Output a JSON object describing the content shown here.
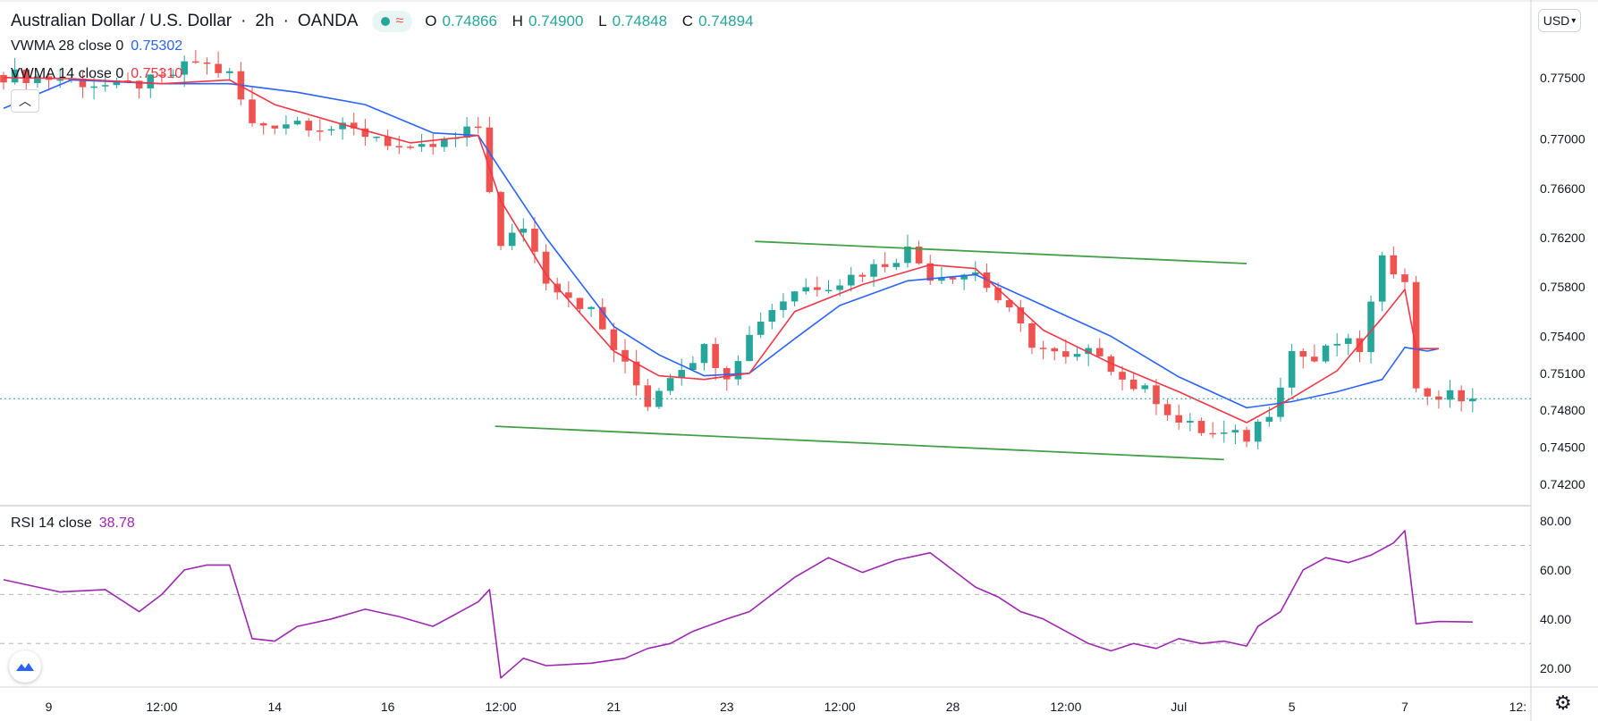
{
  "header": {
    "symbol": "Australian Dollar / U.S. Dollar",
    "interval": "2h",
    "exchange": "OANDA",
    "ohlc": {
      "open_label": "O",
      "open": "0.74866",
      "high_label": "H",
      "high": "0.74900",
      "low_label": "L",
      "low": "0.74848",
      "close_label": "C",
      "close": "0.74894"
    }
  },
  "indicators": {
    "vwma28": {
      "label": "VWMA 28 close 0",
      "value": "0.75302",
      "color": "#2962ff"
    },
    "vwma14": {
      "label": "VWMA 14 close 0",
      "value": "0.75310",
      "color": "#f23645"
    }
  },
  "rsi": {
    "label": "RSI 14 close",
    "value": "38.78",
    "color": "#9c27b0"
  },
  "currency_button": "USD",
  "chart_data": [
    {
      "type": "candlestick",
      "title": "Australian Dollar / U.S. Dollar 2h OANDA",
      "ylim": [
        0.7404,
        0.781
      ],
      "y_ticks": [
        "0.77500",
        "0.77000",
        "0.76600",
        "0.76200",
        "0.75800",
        "0.75400",
        "0.75100",
        "0.74800",
        "0.74500",
        "0.74200"
      ],
      "y_tick_values": [
        0.775,
        0.77,
        0.766,
        0.762,
        0.758,
        0.754,
        0.751,
        0.748,
        0.745,
        0.742
      ],
      "x_ticks": [
        "9",
        "12:00",
        "14",
        "16",
        "12:00",
        "21",
        "23",
        "12:00",
        "28",
        "12:00",
        "Jul",
        "5",
        "7",
        "12:"
      ],
      "x_tick_positions": [
        4,
        14,
        24,
        34,
        44,
        54,
        64,
        74,
        84,
        94,
        104,
        114,
        124,
        134
      ],
      "x_range": [
        0,
        135
      ],
      "last_price": 0.74894,
      "anchors_close": [
        [
          0,
          0.7752
        ],
        [
          5,
          0.7749
        ],
        [
          10,
          0.7742
        ],
        [
          14,
          0.7748
        ],
        [
          17,
          0.7763
        ],
        [
          20,
          0.7752
        ],
        [
          22,
          0.7711
        ],
        [
          26,
          0.7715
        ],
        [
          29,
          0.7709
        ],
        [
          33,
          0.7703
        ],
        [
          36,
          0.7688
        ],
        [
          40,
          0.77
        ],
        [
          42,
          0.771
        ],
        [
          44,
          0.7611
        ],
        [
          46,
          0.763
        ],
        [
          48,
          0.7587
        ],
        [
          52,
          0.756
        ],
        [
          55,
          0.7515
        ],
        [
          57,
          0.7486
        ],
        [
          59,
          0.751
        ],
        [
          62,
          0.753
        ],
        [
          64,
          0.751
        ],
        [
          67,
          0.7555
        ],
        [
          70,
          0.7578
        ],
        [
          74,
          0.7585
        ],
        [
          78,
          0.76
        ],
        [
          80,
          0.761
        ],
        [
          82,
          0.759
        ],
        [
          86,
          0.7592
        ],
        [
          88,
          0.757
        ],
        [
          91,
          0.7535
        ],
        [
          94,
          0.752
        ],
        [
          97,
          0.7528
        ],
        [
          99,
          0.7505
        ],
        [
          102,
          0.749
        ],
        [
          104,
          0.747
        ],
        [
          107,
          0.746
        ],
        [
          110,
          0.7458
        ],
        [
          112,
          0.748
        ],
        [
          114,
          0.7528
        ],
        [
          116,
          0.752
        ],
        [
          118,
          0.7535
        ],
        [
          120,
          0.753
        ],
        [
          122,
          0.76
        ],
        [
          124,
          0.759
        ],
        [
          125,
          0.7495
        ],
        [
          127,
          0.7492
        ],
        [
          130,
          0.7489
        ]
      ],
      "vwma28_points": [
        [
          0,
          0.7725
        ],
        [
          6,
          0.7748
        ],
        [
          14,
          0.7745
        ],
        [
          20,
          0.7745
        ],
        [
          26,
          0.7738
        ],
        [
          32,
          0.7728
        ],
        [
          38,
          0.7705
        ],
        [
          42,
          0.7703
        ],
        [
          44,
          0.7675
        ],
        [
          48,
          0.762
        ],
        [
          54,
          0.7548
        ],
        [
          58,
          0.7525
        ],
        [
          62,
          0.7508
        ],
        [
          66,
          0.751
        ],
        [
          70,
          0.7538
        ],
        [
          74,
          0.7565
        ],
        [
          80,
          0.7585
        ],
        [
          86,
          0.759
        ],
        [
          92,
          0.7565
        ],
        [
          98,
          0.754
        ],
        [
          104,
          0.7507
        ],
        [
          110,
          0.7482
        ],
        [
          114,
          0.7487
        ],
        [
          118,
          0.7495
        ],
        [
          122,
          0.7505
        ],
        [
          124,
          0.7531
        ],
        [
          126,
          0.7528
        ],
        [
          127,
          0.753
        ]
      ],
      "vwma14_points": [
        [
          0,
          0.775
        ],
        [
          6,
          0.7749
        ],
        [
          14,
          0.7745
        ],
        [
          20,
          0.7748
        ],
        [
          24,
          0.7728
        ],
        [
          30,
          0.7712
        ],
        [
          36,
          0.7697
        ],
        [
          42,
          0.7703
        ],
        [
          44,
          0.765
        ],
        [
          48,
          0.759
        ],
        [
          54,
          0.7528
        ],
        [
          58,
          0.7508
        ],
        [
          62,
          0.7505
        ],
        [
          66,
          0.751
        ],
        [
          70,
          0.756
        ],
        [
          76,
          0.7582
        ],
        [
          82,
          0.7598
        ],
        [
          86,
          0.7595
        ],
        [
          92,
          0.7545
        ],
        [
          98,
          0.7518
        ],
        [
          104,
          0.7495
        ],
        [
          110,
          0.747
        ],
        [
          114,
          0.749
        ],
        [
          118,
          0.7512
        ],
        [
          122,
          0.7555
        ],
        [
          124,
          0.7578
        ],
        [
          125,
          0.753
        ],
        [
          127,
          0.753
        ]
      ],
      "channel_upper": [
        [
          66.5,
          0.7617
        ],
        [
          110,
          0.7599
        ]
      ],
      "channel_lower": [
        [
          43.5,
          0.7467
        ],
        [
          108,
          0.744
        ]
      ]
    },
    {
      "type": "line",
      "title": "RSI 14 close",
      "ylim": [
        13,
        84
      ],
      "y_ticks": [
        "80.00",
        "60.00",
        "40.00",
        "20.00"
      ],
      "y_tick_values": [
        80,
        60,
        40,
        20
      ],
      "bands": [
        70,
        50,
        30
      ],
      "rsi_points": [
        [
          0,
          56
        ],
        [
          3,
          53
        ],
        [
          5,
          51
        ],
        [
          9,
          52
        ],
        [
          12,
          43
        ],
        [
          14,
          50
        ],
        [
          16,
          60
        ],
        [
          18,
          62
        ],
        [
          20,
          62
        ],
        [
          22,
          32
        ],
        [
          24,
          31
        ],
        [
          26,
          37
        ],
        [
          29,
          40
        ],
        [
          32,
          44
        ],
        [
          35,
          41
        ],
        [
          38,
          37
        ],
        [
          40,
          42
        ],
        [
          42,
          47
        ],
        [
          43,
          52
        ],
        [
          44,
          16
        ],
        [
          46,
          24
        ],
        [
          48,
          21
        ],
        [
          52,
          22
        ],
        [
          55,
          24
        ],
        [
          57,
          28
        ],
        [
          59,
          30
        ],
        [
          61,
          35
        ],
        [
          64,
          40
        ],
        [
          66,
          43
        ],
        [
          68,
          50
        ],
        [
          70,
          57
        ],
        [
          73,
          65
        ],
        [
          76,
          59
        ],
        [
          79,
          64
        ],
        [
          82,
          67
        ],
        [
          84,
          60
        ],
        [
          86,
          53
        ],
        [
          88,
          49
        ],
        [
          90,
          43
        ],
        [
          92,
          40
        ],
        [
          94,
          35
        ],
        [
          96,
          30
        ],
        [
          98,
          27
        ],
        [
          100,
          30
        ],
        [
          102,
          28
        ],
        [
          104,
          32
        ],
        [
          106,
          30
        ],
        [
          108,
          31
        ],
        [
          110,
          29
        ],
        [
          111,
          37
        ],
        [
          113,
          43
        ],
        [
          115,
          60
        ],
        [
          117,
          65
        ],
        [
          119,
          63
        ],
        [
          121,
          66
        ],
        [
          123,
          71
        ],
        [
          124,
          76
        ],
        [
          125,
          38
        ],
        [
          127,
          39
        ],
        [
          130,
          38.78
        ]
      ]
    }
  ]
}
